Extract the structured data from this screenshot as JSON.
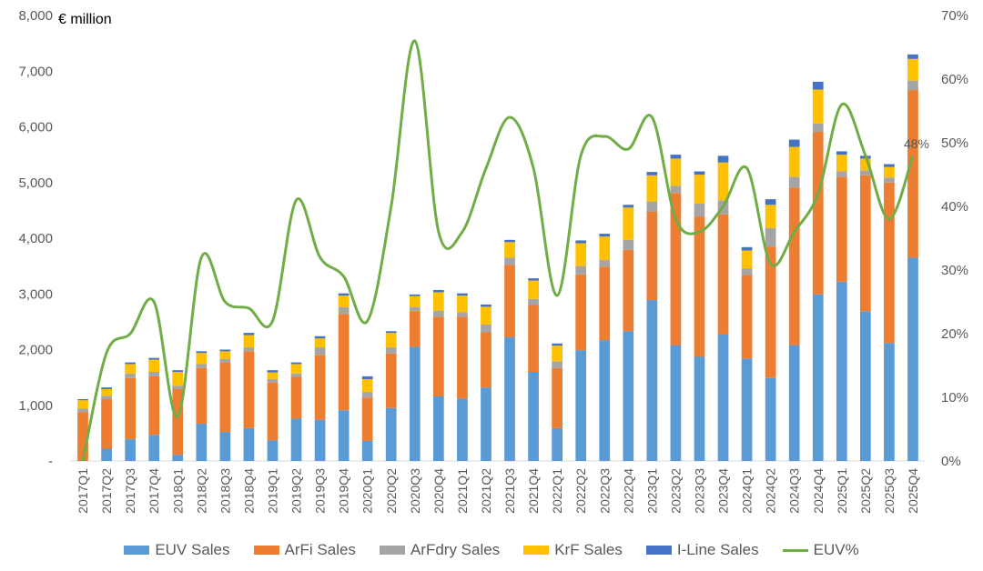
{
  "chart_data": {
    "type": "bar",
    "stacked": true,
    "unit_label": "€ million",
    "categories": [
      "2017Q1",
      "2017Q2",
      "2017Q3",
      "2017Q4",
      "2018Q1",
      "2018Q2",
      "2018Q3",
      "2018Q4",
      "2019Q1",
      "2019Q2",
      "2019Q3",
      "2019Q4",
      "2020Q1",
      "2020Q2",
      "2020Q3",
      "2020Q4",
      "2021Q1",
      "2021Q2",
      "2021Q3",
      "2021Q4",
      "2022Q1",
      "2022Q2",
      "2022Q3",
      "2022Q4",
      "2023Q1",
      "2023Q2",
      "2023Q3",
      "2023Q4",
      "2024Q1",
      "2024Q2",
      "2024Q3",
      "2024Q4",
      "2025Q1",
      "2025Q2",
      "2025Q3",
      "2025Q4"
    ],
    "ylim": [
      0,
      8000
    ],
    "yticks": [
      0,
      1000,
      2000,
      3000,
      4000,
      5000,
      6000,
      7000,
      8000
    ],
    "ytick_labels": [
      "-",
      "1,000",
      "2,000",
      "3,000",
      "4,000",
      "5,000",
      "6,000",
      "7,000",
      "8,000"
    ],
    "y2lim": [
      0,
      70
    ],
    "y2ticks": [
      0,
      10,
      20,
      30,
      40,
      50,
      60,
      70
    ],
    "y2tick_labels": [
      "0%",
      "10%",
      "20%",
      "30%",
      "40%",
      "50%",
      "60%",
      "70%"
    ],
    "series": [
      {
        "name": "EUV Sales",
        "color": "#5B9BD5",
        "values": [
          0,
          220,
          390,
          470,
          110,
          670,
          520,
          590,
          370,
          760,
          740,
          910,
          360,
          950,
          2050,
          1160,
          1120,
          1320,
          2220,
          1600,
          590,
          1990,
          2170,
          2330,
          2890,
          2080,
          1870,
          2270,
          1840,
          1490,
          2080,
          2990,
          3220,
          2690,
          2120,
          3650
        ]
      },
      {
        "name": "ArFi Sales",
        "color": "#ED7D31",
        "values": [
          880,
          890,
          1100,
          1050,
          1180,
          1000,
          1250,
          1380,
          1040,
          750,
          1160,
          1730,
          780,
          980,
          640,
          1430,
          1470,
          990,
          1300,
          1200,
          1080,
          1360,
          1320,
          1460,
          1590,
          2730,
          2520,
          2160,
          1500,
          2360,
          2830,
          2920,
          1880,
          2440,
          2880,
          3010
        ]
      },
      {
        "name": "ArFdry Sales",
        "color": "#A5A5A5",
        "values": [
          60,
          60,
          80,
          80,
          60,
          70,
          60,
          70,
          60,
          60,
          140,
          120,
          100,
          110,
          70,
          110,
          80,
          140,
          130,
          110,
          120,
          150,
          120,
          180,
          180,
          130,
          230,
          250,
          120,
          330,
          190,
          150,
          100,
          90,
          90,
          170
        ]
      },
      {
        "name": "KrF Sales",
        "color": "#FFC000",
        "values": [
          150,
          120,
          170,
          220,
          250,
          200,
          140,
          220,
          120,
          170,
          160,
          210,
          230,
          260,
          200,
          330,
          300,
          320,
          280,
          330,
          280,
          410,
          420,
          580,
          470,
          490,
          520,
          680,
          320,
          420,
          540,
          610,
          300,
          210,
          190,
          390
        ]
      },
      {
        "name": "I-Line Sales",
        "color": "#4472C4",
        "values": [
          20,
          30,
          30,
          30,
          30,
          30,
          30,
          40,
          40,
          30,
          40,
          40,
          50,
          30,
          30,
          40,
          40,
          40,
          40,
          40,
          40,
          50,
          50,
          50,
          60,
          70,
          60,
          120,
          60,
          100,
          130,
          140,
          60,
          50,
          50,
          80
        ]
      },
      {
        "name": "EUV%",
        "color": "#70AD47",
        "type": "line",
        "axis": "secondary",
        "values": [
          0,
          17,
          20,
          25,
          7,
          32,
          25,
          24,
          22,
          41,
          32,
          29,
          22,
          40,
          66,
          36,
          36,
          46,
          54,
          46,
          26,
          48,
          51,
          49,
          54,
          38,
          36,
          40,
          46,
          31,
          36,
          42,
          56,
          48,
          38,
          48
        ]
      }
    ],
    "annotations": [
      {
        "category": "2025Q4",
        "text": "48%"
      }
    ],
    "legend": "bottom",
    "grid": false
  }
}
